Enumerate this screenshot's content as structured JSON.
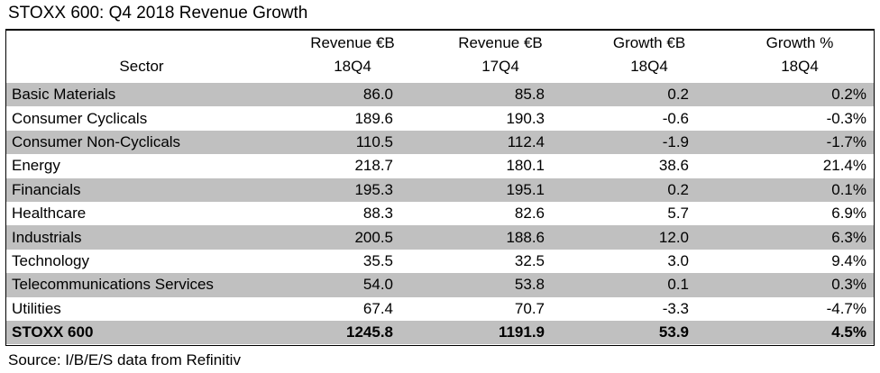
{
  "title": "STOXX 600: Q4 2018 Revenue Growth",
  "source": "Source: I/B/E/S data from Refinitiv",
  "colors": {
    "shaded_row": "#c0c0c0",
    "text": "#000000",
    "border": "#000000"
  },
  "chart_data": {
    "type": "table",
    "title": "STOXX 600: Q4 2018 Revenue Growth",
    "columns": [
      {
        "line1": "",
        "line2": "Sector"
      },
      {
        "line1": "Revenue €B",
        "line2": "18Q4"
      },
      {
        "line1": "Revenue €B",
        "line2": "17Q4"
      },
      {
        "line1": "Growth €B",
        "line2": "18Q4"
      },
      {
        "line1": "Growth %",
        "line2": "18Q4"
      }
    ],
    "rows": [
      {
        "sector": "Basic Materials",
        "rev18": "86.0",
        "rev17": "85.8",
        "growth_eur": "0.2",
        "growth_pct": "0.2%",
        "shaded": true,
        "bold": false
      },
      {
        "sector": "Consumer Cyclicals",
        "rev18": "189.6",
        "rev17": "190.3",
        "growth_eur": "-0.6",
        "growth_pct": "-0.3%",
        "shaded": false,
        "bold": false
      },
      {
        "sector": "Consumer Non-Cyclicals",
        "rev18": "110.5",
        "rev17": "112.4",
        "growth_eur": "-1.9",
        "growth_pct": "-1.7%",
        "shaded": true,
        "bold": false
      },
      {
        "sector": "Energy",
        "rev18": "218.7",
        "rev17": "180.1",
        "growth_eur": "38.6",
        "growth_pct": "21.4%",
        "shaded": false,
        "bold": false
      },
      {
        "sector": "Financials",
        "rev18": "195.3",
        "rev17": "195.1",
        "growth_eur": "0.2",
        "growth_pct": "0.1%",
        "shaded": true,
        "bold": false
      },
      {
        "sector": "Healthcare",
        "rev18": "88.3",
        "rev17": "82.6",
        "growth_eur": "5.7",
        "growth_pct": "6.9%",
        "shaded": false,
        "bold": false
      },
      {
        "sector": "Industrials",
        "rev18": "200.5",
        "rev17": "188.6",
        "growth_eur": "12.0",
        "growth_pct": "6.3%",
        "shaded": true,
        "bold": false
      },
      {
        "sector": "Technology",
        "rev18": "35.5",
        "rev17": "32.5",
        "growth_eur": "3.0",
        "growth_pct": "9.4%",
        "shaded": false,
        "bold": false
      },
      {
        "sector": "Telecommunications Services",
        "rev18": "54.0",
        "rev17": "53.8",
        "growth_eur": "0.1",
        "growth_pct": "0.3%",
        "shaded": true,
        "bold": false
      },
      {
        "sector": "Utilities",
        "rev18": "67.4",
        "rev17": "70.7",
        "growth_eur": "-3.3",
        "growth_pct": "-4.7%",
        "shaded": false,
        "bold": false
      },
      {
        "sector": "STOXX 600",
        "rev18": "1245.8",
        "rev17": "1191.9",
        "growth_eur": "53.9",
        "growth_pct": "4.5%",
        "shaded": true,
        "bold": true
      }
    ]
  }
}
